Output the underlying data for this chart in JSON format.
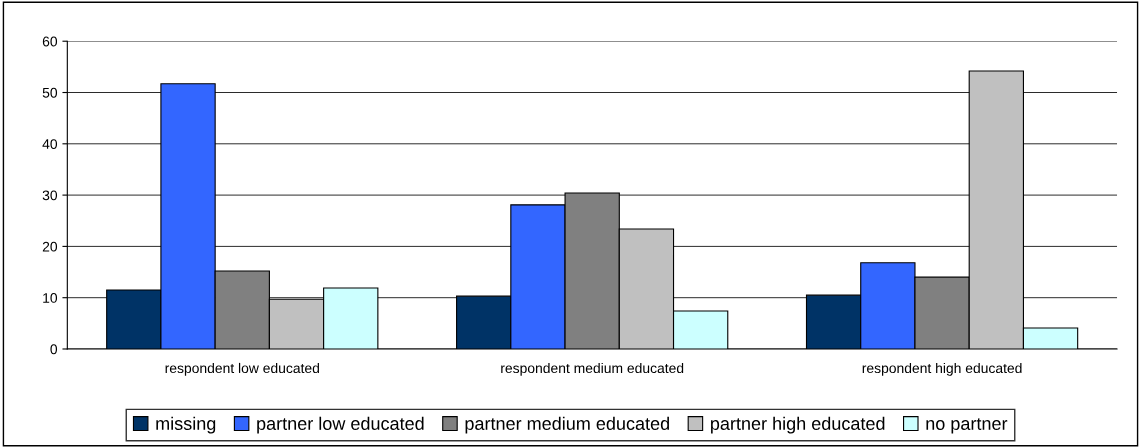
{
  "chart_data": {
    "type": "bar",
    "categories": [
      "respondent low educated",
      "respondent medium educated",
      "respondent high educated"
    ],
    "series": [
      {
        "name": "missing",
        "color": "#003366",
        "values": [
          11.5,
          10.3,
          10.5
        ]
      },
      {
        "name": "partner low educated",
        "color": "#3366ff",
        "values": [
          51.7,
          28.1,
          16.8
        ]
      },
      {
        "name": "partner medium educated",
        "color": "#808080",
        "values": [
          15.2,
          30.4,
          14.0
        ]
      },
      {
        "name": "partner high educated",
        "color": "#c0c0c0",
        "values": [
          9.7,
          23.4,
          54.2
        ]
      },
      {
        "name": "no partner",
        "color": "#ccffff",
        "values": [
          11.9,
          7.4,
          4.1
        ]
      }
    ],
    "ylim": [
      0,
      60
    ],
    "yticks": [
      0,
      10,
      20,
      30,
      40,
      50,
      60
    ],
    "grid": "y",
    "legend": "bottom"
  }
}
